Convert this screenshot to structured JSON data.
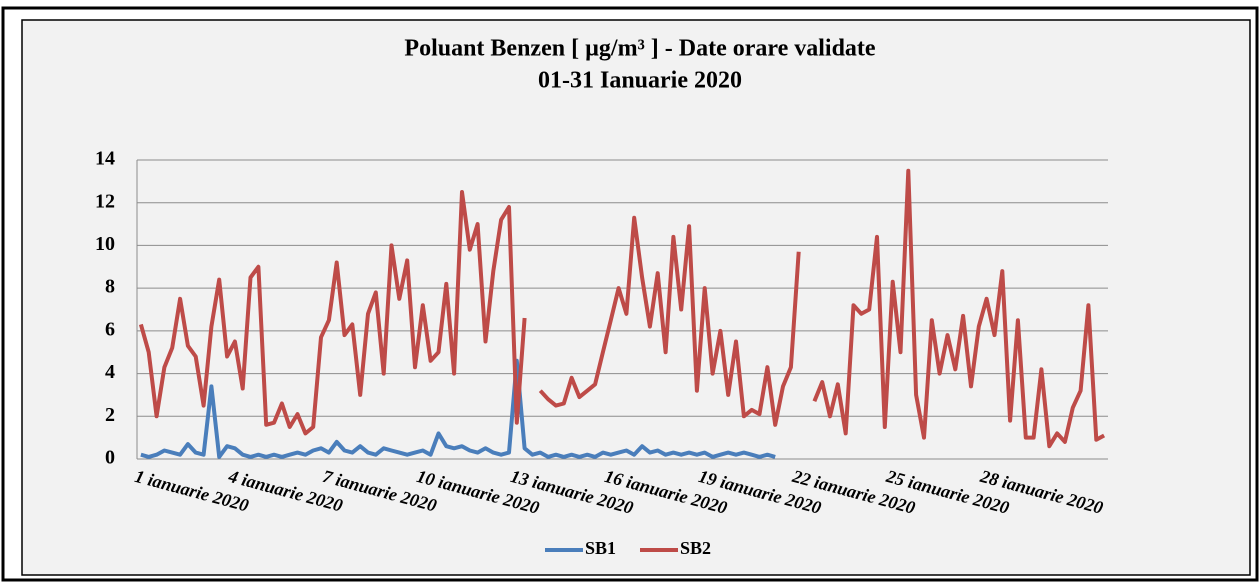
{
  "chart_data": {
    "type": "line",
    "title": "Poluant Benzen [ µg/m³ ] - Date orare validate",
    "subtitle": "01-31 Ianuarie 2020",
    "categories": [
      "1 ianuarie 2020",
      null,
      null,
      null,
      null,
      null,
      null,
      null,
      null,
      null,
      null,
      null,
      "4 ianuarie 2020",
      null,
      null,
      null,
      null,
      null,
      null,
      null,
      null,
      null,
      null,
      null,
      "7 ianuarie 2020",
      null,
      null,
      null,
      null,
      null,
      null,
      null,
      null,
      null,
      null,
      null,
      "10 ianuarie 2020",
      null,
      null,
      null,
      null,
      null,
      null,
      null,
      null,
      null,
      null,
      null,
      "13 ianuarie 2020",
      null,
      null,
      null,
      null,
      null,
      null,
      null,
      null,
      null,
      null,
      null,
      "16 ianuarie 2020",
      null,
      null,
      null,
      null,
      null,
      null,
      null,
      null,
      null,
      null,
      null,
      "19 ianuarie 2020",
      null,
      null,
      null,
      null,
      null,
      null,
      null,
      null,
      null,
      null,
      null,
      "22 ianuarie 2020",
      null,
      null,
      null,
      null,
      null,
      null,
      null,
      null,
      null,
      null,
      null,
      "25 ianuarie 2020",
      null,
      null,
      null,
      null,
      null,
      null,
      null,
      null,
      null,
      null,
      null,
      "28 ianuarie 2020",
      null,
      null,
      null,
      null,
      null,
      null,
      null,
      null,
      null,
      null,
      null,
      null,
      null,
      null,
      null
    ],
    "series": [
      {
        "name": "SB1",
        "color": "#4a7ebb",
        "values": [
          0.2,
          0.1,
          0.2,
          0.4,
          0.3,
          0.2,
          0.7,
          0.3,
          0.2,
          3.4,
          0.1,
          0.6,
          0.5,
          0.2,
          0.1,
          0.2,
          0.1,
          0.2,
          0.1,
          0.2,
          0.3,
          0.2,
          0.4,
          0.5,
          0.3,
          0.8,
          0.4,
          0.3,
          0.6,
          0.3,
          0.2,
          0.5,
          0.4,
          0.3,
          0.2,
          0.3,
          0.4,
          0.2,
          1.2,
          0.6,
          0.5,
          0.6,
          0.4,
          0.3,
          0.5,
          0.3,
          0.2,
          0.3,
          4.6,
          0.5,
          0.2,
          0.3,
          0.1,
          0.2,
          0.1,
          0.2,
          0.1,
          0.2,
          0.1,
          0.3,
          0.2,
          0.3,
          0.4,
          0.2,
          0.6,
          0.3,
          0.4,
          0.2,
          0.3,
          0.2,
          0.3,
          0.2,
          0.3,
          0.1,
          0.2,
          0.3,
          0.2,
          0.3,
          0.2,
          0.1,
          0.2,
          0.1,
          null,
          null,
          null,
          null,
          null,
          null,
          null,
          null,
          null,
          null,
          null,
          null,
          null,
          null,
          null,
          null,
          null,
          null,
          null,
          null,
          null,
          null,
          null,
          null,
          null,
          null,
          null,
          null,
          null,
          null,
          null,
          null,
          null,
          null,
          null,
          null,
          null,
          null,
          null,
          null,
          null,
          null
        ]
      },
      {
        "name": "SB2",
        "color": "#be4b48",
        "values": [
          6.3,
          5.0,
          2.0,
          4.3,
          5.2,
          7.5,
          5.3,
          4.8,
          2.5,
          6.2,
          8.4,
          4.8,
          5.5,
          3.3,
          8.5,
          9.0,
          1.6,
          1.7,
          2.6,
          1.5,
          2.1,
          1.2,
          1.5,
          5.7,
          6.5,
          9.2,
          5.8,
          6.3,
          3.0,
          6.8,
          7.8,
          4.0,
          10.0,
          7.5,
          9.3,
          4.3,
          7.2,
          4.6,
          5.0,
          8.2,
          4.0,
          12.5,
          9.8,
          11.0,
          5.5,
          8.8,
          11.2,
          11.8,
          1.7,
          6.6,
          null,
          3.2,
          2.8,
          2.5,
          2.6,
          3.8,
          2.9,
          3.2,
          3.5,
          5.0,
          6.5,
          8.0,
          6.8,
          11.3,
          8.5,
          6.2,
          8.7,
          5.0,
          10.4,
          7.0,
          10.9,
          3.2,
          8.0,
          4.0,
          6.0,
          3.0,
          5.5,
          2.0,
          2.3,
          2.1,
          4.3,
          1.6,
          3.4,
          4.3,
          9.7,
          null,
          2.7,
          3.6,
          2.0,
          3.5,
          1.2,
          7.2,
          6.8,
          7.0,
          10.4,
          1.5,
          8.3,
          5.0,
          13.5,
          3.0,
          1.0,
          6.5,
          4.0,
          5.8,
          4.2,
          6.7,
          3.4,
          6.2,
          7.5,
          5.8,
          8.8,
          1.8,
          6.5,
          1.0,
          1.0,
          4.2,
          0.6,
          1.2,
          0.8,
          2.4,
          3.2,
          7.2,
          0.9,
          1.1
        ]
      }
    ],
    "ylim": [
      0,
      14
    ],
    "yticks": [
      0,
      2,
      4,
      6,
      8,
      10,
      12,
      14
    ],
    "grid": true,
    "legend": "bottom"
  }
}
